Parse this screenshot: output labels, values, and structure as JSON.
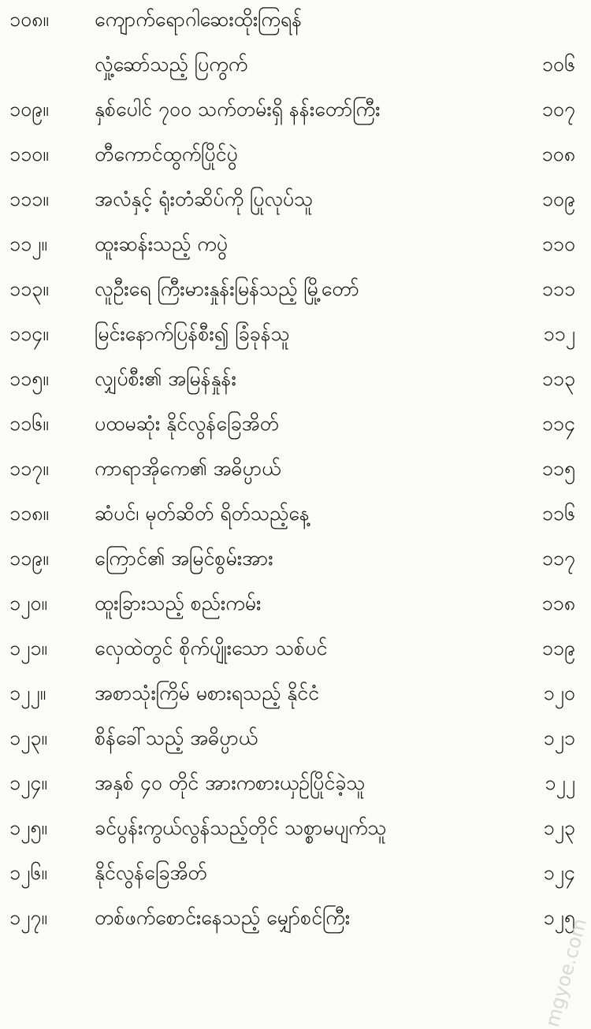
{
  "entries": [
    {
      "num": "၁၀၈။",
      "title": "ကျောက်ရောဂါဆေးထိုးကြရန်",
      "page": ""
    },
    {
      "num": "",
      "title": "လှုံ့ဆော်သည့် ပြကွက်",
      "page": "၁၀၆"
    },
    {
      "num": "၁၀၉။",
      "title": "နှစ်ပေါင် ၇၀၀ သက်တမ်းရှိ နန်းတော်ကြီး",
      "page": "၁၀၇"
    },
    {
      "num": "၁၁၀။",
      "title": "တီကောင်ထွက်ပြိုင်ပွဲ",
      "page": "၁၀၈"
    },
    {
      "num": "၁၁၁။",
      "title": "အလံနှင့် ရုံးတံဆိပ်ကို ပြုလုပ်သူ",
      "page": "၁၀၉"
    },
    {
      "num": "၁၁၂။",
      "title": "ထူးဆန်းသည့် ကပွဲ",
      "page": "၁၁၀"
    },
    {
      "num": "၁၁၃။",
      "title": "လူဦးရေ ကြီးမားနှုန်းမြန်သည့် မြို့တော်",
      "page": "၁၁၁"
    },
    {
      "num": "၁၁၄။",
      "title": "မြင်းနောက်ပြန်စီး၍ ခြံခုန်သူ",
      "page": "၁၁၂"
    },
    {
      "num": "၁၁၅။",
      "title": "လျှပ်စီး၏ အမြန်နှုန်း",
      "page": "၁၁၃"
    },
    {
      "num": "၁၁၆။",
      "title": "ပထမဆုံး နိုင်လွန်ခြေအိတ်",
      "page": "၁၁၄"
    },
    {
      "num": "၁၁၇။",
      "title": "ကာရာအိုကေ၏ အဓိပ္ပာယ်",
      "page": "၁၁၅"
    },
    {
      "num": "၁၁၈။",
      "title": "ဆံပင်၊ မုတ်ဆိတ် ရိတ်သည့်နေ့",
      "page": "၁၁၆"
    },
    {
      "num": "၁၁၉။",
      "title": "ကြောင်၏ အမြင်စွမ်းအား",
      "page": "၁၁၇"
    },
    {
      "num": "၁၂၀။",
      "title": "ထူးခြားသည့် စည်းကမ်း",
      "page": "၁၁၈"
    },
    {
      "num": "၁၂၁။",
      "title": "လှေထဲတွင် စိုက်ပျိုးသော သစ်ပင်",
      "page": "၁၁၉"
    },
    {
      "num": "၁၂၂။",
      "title": "အစာသုံးကြိမ် မစားရသည့် နိုင်ငံ",
      "page": "၁၂၀"
    },
    {
      "num": "၁၂၃။",
      "title": "စိန်ခေါ်သည့် အဓိပ္ပာယ်",
      "page": "၁၂၁"
    },
    {
      "num": "၁၂၄။",
      "title": "အနှစ် ၄၀ တိုင် အားကစားယှဉ်ပြိုင်ခဲ့သူ",
      "page": "၁၂၂"
    },
    {
      "num": "၁၂၅။",
      "title": "ခင်ပွန်းကွယ်လွန်သည့်တိုင် သစ္စာမပျက်သူ",
      "page": "၁၂၃"
    },
    {
      "num": "၁၂၆။",
      "title": "နိုင်လွန်ခြေအိတ်",
      "page": "၁၂၄"
    },
    {
      "num": "၁၂၇။",
      "title": "တစ်ဖက်စောင်းနေသည့် မျှော်စင်ကြီး",
      "page": "၁၂၅"
    }
  ],
  "watermark": "mgyoe.com"
}
